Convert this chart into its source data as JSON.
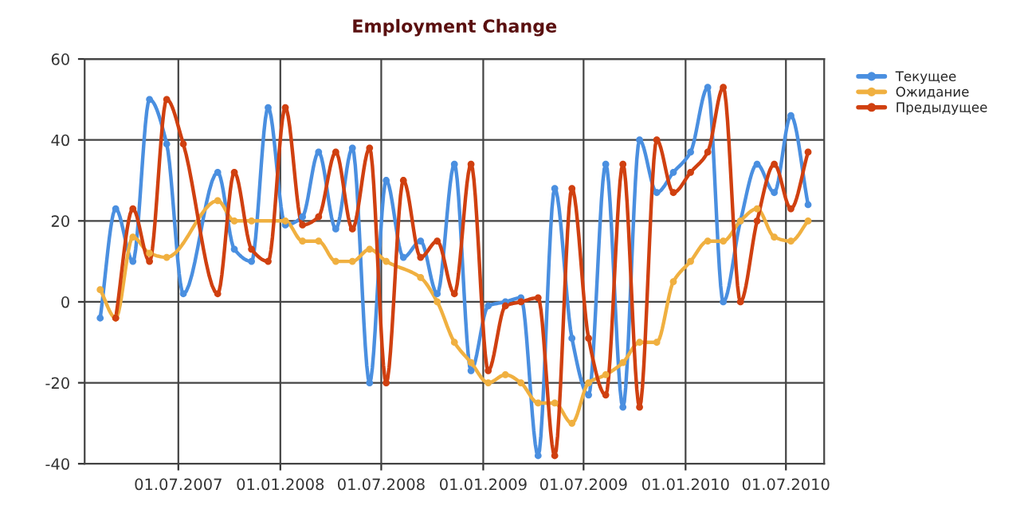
{
  "chart_data": {
    "type": "line",
    "title": "Employment Change",
    "x": [
      "2007-02-10",
      "2007-03-10",
      "2007-04-10",
      "2007-05-10",
      "2007-06-10",
      "2007-07-10",
      "2007-09-10",
      "2007-10-10",
      "2007-11-10",
      "2007-12-10",
      "2008-01-10",
      "2008-02-10",
      "2008-03-10",
      "2008-04-10",
      "2008-05-10",
      "2008-06-10",
      "2008-07-10",
      "2008-08-10",
      "2008-09-10",
      "2008-10-10",
      "2008-11-10",
      "2008-12-10",
      "2009-01-10",
      "2009-02-10",
      "2009-03-10",
      "2009-04-10",
      "2009-05-10",
      "2009-06-10",
      "2009-07-10",
      "2009-08-10",
      "2009-09-10",
      "2009-10-10",
      "2009-11-10",
      "2009-12-10",
      "2010-01-10",
      "2010-02-10",
      "2010-03-10",
      "2010-04-10",
      "2010-05-10",
      "2010-06-10",
      "2010-07-10",
      "2010-08-10"
    ],
    "series": [
      {
        "name": "Текущее",
        "color": "#4a8fe0",
        "values": [
          -4,
          23,
          10,
          50,
          39,
          2,
          32,
          13,
          10,
          48,
          19,
          21,
          37,
          18,
          38,
          -20,
          30,
          11,
          15,
          2,
          34,
          -17,
          -1,
          0,
          1,
          -38,
          28,
          -9,
          -23,
          34,
          -26,
          40,
          27,
          32,
          37,
          53,
          0,
          20,
          34,
          27,
          46,
          24
        ]
      },
      {
        "name": "Ожидание",
        "color": "#f0b040",
        "values": [
          3,
          -4,
          16,
          12,
          11,
          null,
          25,
          20,
          20,
          null,
          20,
          15,
          15,
          10,
          10,
          13,
          10,
          null,
          6,
          0,
          -10,
          -15,
          -20,
          -18,
          -20,
          -25,
          -25,
          -30,
          -20,
          -18,
          -15,
          -10,
          -10,
          5,
          10,
          15,
          15,
          20,
          23,
          16,
          15,
          20
        ]
      },
      {
        "name": "Предыдущее",
        "color": "#d04010",
        "values": [
          null,
          -4,
          23,
          10,
          50,
          39,
          2,
          32,
          13,
          10,
          48,
          19,
          21,
          37,
          18,
          38,
          -20,
          30,
          11,
          15,
          2,
          34,
          -17,
          -1,
          0,
          1,
          -38,
          28,
          -9,
          -23,
          34,
          -26,
          40,
          27,
          32,
          37,
          53,
          0,
          20,
          34,
          23,
          37
        ]
      }
    ],
    "xlim": [
      "2007-01-13",
      "2010-09-08"
    ],
    "xticks": [
      {
        "value": "2007-07-01",
        "label": "01.07.2007"
      },
      {
        "value": "2008-01-01",
        "label": "01.01.2008"
      },
      {
        "value": "2008-07-01",
        "label": "01.07.2008"
      },
      {
        "value": "2009-01-01",
        "label": "01.01.2009"
      },
      {
        "value": "2009-07-01",
        "label": "01.07.2009"
      },
      {
        "value": "2010-01-01",
        "label": "01.01.2010"
      },
      {
        "value": "2010-07-01",
        "label": "01.07.2010"
      }
    ],
    "ylim": [
      -40,
      60
    ],
    "yticks": [
      -40,
      -20,
      0,
      20,
      40,
      60
    ],
    "grid": true,
    "legend": "top right",
    "marker": "circle",
    "line_style": "solid"
  }
}
